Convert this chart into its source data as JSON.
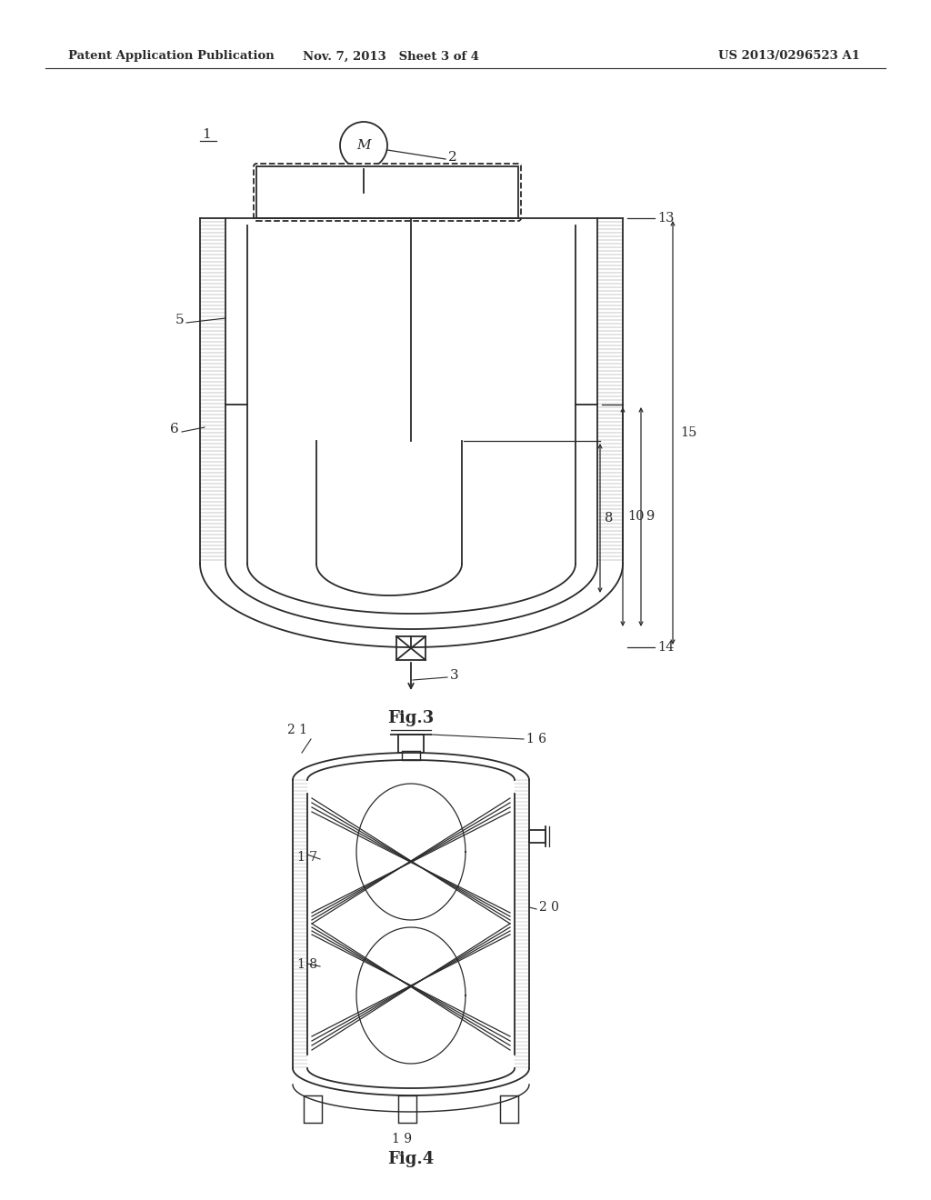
{
  "bg_color": "#ffffff",
  "line_color": "#2a2a2a",
  "header_left": "Patent Application Publication",
  "header_mid": "Nov. 7, 2013   Sheet 3 of 4",
  "header_right": "US 2013/0296523 A1",
  "fig3_label": "Fig.3",
  "fig4_label": "Fig.4",
  "label_1": "1",
  "label_2": "2",
  "label_3": "3",
  "label_5": "5",
  "label_6": "6",
  "label_8": "8",
  "label_9": "9",
  "label_10": "10",
  "label_13": "13",
  "label_14": "14",
  "label_15": "15",
  "label_16": "1 6",
  "label_17": "1 7",
  "label_18": "1 8",
  "label_19": "1 9",
  "label_20": "2 0",
  "label_21": "2 1"
}
